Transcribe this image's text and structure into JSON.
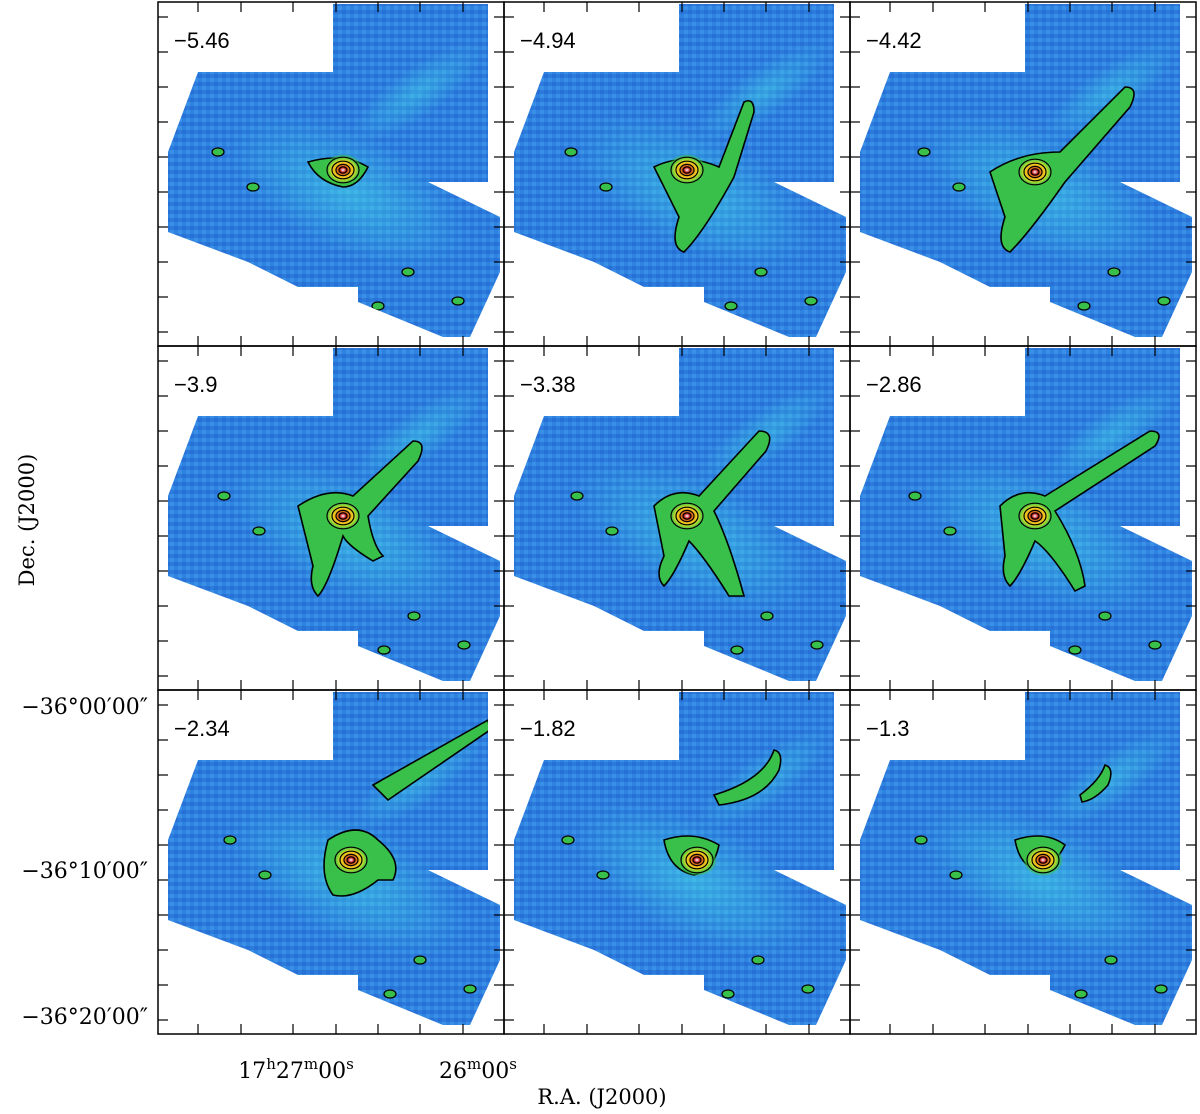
{
  "figure": {
    "panels": [
      {
        "velocity_label": "−5.46"
      },
      {
        "velocity_label": "−4.94"
      },
      {
        "velocity_label": "−4.42"
      },
      {
        "velocity_label": "−3.9"
      },
      {
        "velocity_label": "−3.38"
      },
      {
        "velocity_label": "−2.86"
      },
      {
        "velocity_label": "−2.34"
      },
      {
        "velocity_label": "−1.82"
      },
      {
        "velocity_label": "−1.3"
      }
    ],
    "y_axis": {
      "title": "Dec. (J2000)",
      "ticks": [
        "−36°00′00″",
        "−36°10′00″",
        "−36°20′00″"
      ]
    },
    "x_axis": {
      "title": "R.A. (J2000)",
      "ticks": [
        {
          "h": "17",
          "hs": "h",
          "m": "27",
          "ms": "m",
          "s": "00",
          "ss": "s"
        },
        {
          "m": "26",
          "ms": "m",
          "s": "00",
          "ss": "s"
        }
      ]
    },
    "colors": {
      "background_map": "#2b7cdf",
      "low": "#1c47b8",
      "mid": "#3fd3e8",
      "green": "#39c04a",
      "yellow": "#f2e01c",
      "red": "#d4231a",
      "contour": "#000000"
    }
  }
}
